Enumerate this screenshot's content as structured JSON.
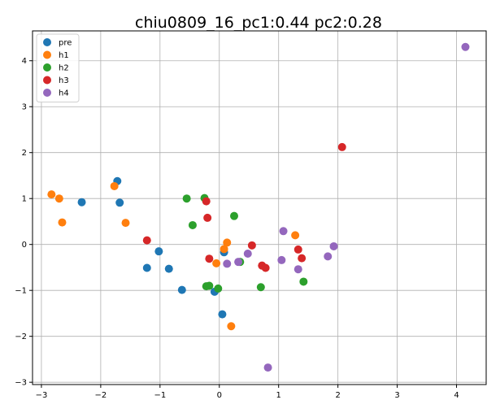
{
  "chart_data": {
    "type": "scatter",
    "title": "chiu0809_16_pc1:0.44 pc2:0.28",
    "xlabel": "",
    "ylabel": "",
    "xlim": [
      -3.15,
      4.5
    ],
    "ylim": [
      -3.05,
      4.65
    ],
    "xticks": [
      -3,
      -2,
      -1,
      0,
      1,
      2,
      3,
      4
    ],
    "yticks": [
      -3,
      -2,
      -1,
      0,
      1,
      2,
      3,
      4
    ],
    "xtick_labels": [
      "−3",
      "−2",
      "−1",
      "0",
      "1",
      "2",
      "3",
      "4"
    ],
    "ytick_labels": [
      "−3",
      "−2",
      "−1",
      "0",
      "1",
      "2",
      "3",
      "4"
    ],
    "grid": true,
    "legend_position": "top-left",
    "series": [
      {
        "name": "pre",
        "color": "#1f77b4",
        "points": [
          [
            -2.32,
            0.92
          ],
          [
            -1.72,
            1.38
          ],
          [
            -1.68,
            0.91
          ],
          [
            -1.22,
            -0.51
          ],
          [
            -1.02,
            -0.15
          ],
          [
            -0.85,
            -0.53
          ],
          [
            -0.63,
            -0.99
          ],
          [
            -0.08,
            -1.03
          ],
          [
            0.05,
            -1.52
          ],
          [
            0.08,
            -0.17
          ]
        ]
      },
      {
        "name": "h1",
        "color": "#ff7f0e",
        "points": [
          [
            -2.83,
            1.09
          ],
          [
            -2.7,
            1.0
          ],
          [
            -2.65,
            0.48
          ],
          [
            -1.77,
            1.27
          ],
          [
            -1.58,
            0.47
          ],
          [
            -0.05,
            -0.41
          ],
          [
            0.08,
            -0.1
          ],
          [
            0.13,
            0.04
          ],
          [
            0.2,
            -1.78
          ],
          [
            1.28,
            0.2
          ]
        ]
      },
      {
        "name": "h2",
        "color": "#2ca02c",
        "points": [
          [
            -0.55,
            1.0
          ],
          [
            -0.45,
            0.42
          ],
          [
            -0.25,
            1.01
          ],
          [
            -0.22,
            -0.91
          ],
          [
            -0.17,
            -0.9
          ],
          [
            -0.02,
            -0.96
          ],
          [
            0.25,
            0.62
          ],
          [
            0.35,
            -0.38
          ],
          [
            0.7,
            -0.93
          ],
          [
            1.42,
            -0.81
          ]
        ]
      },
      {
        "name": "h3",
        "color": "#d62728",
        "points": [
          [
            -1.22,
            0.09
          ],
          [
            -0.22,
            0.94
          ],
          [
            -0.2,
            0.58
          ],
          [
            -0.17,
            -0.31
          ],
          [
            0.55,
            -0.02
          ],
          [
            0.72,
            -0.46
          ],
          [
            0.78,
            -0.51
          ],
          [
            1.33,
            -0.11
          ],
          [
            1.39,
            -0.3
          ],
          [
            2.07,
            2.12
          ]
        ]
      },
      {
        "name": "h4",
        "color": "#9467bd",
        "points": [
          [
            0.13,
            -0.42
          ],
          [
            0.32,
            -0.38
          ],
          [
            0.48,
            -0.2
          ],
          [
            0.82,
            -2.68
          ],
          [
            1.05,
            -0.34
          ],
          [
            1.08,
            0.29
          ],
          [
            1.33,
            -0.54
          ],
          [
            1.83,
            -0.26
          ],
          [
            1.93,
            -0.04
          ],
          [
            4.15,
            4.3
          ]
        ]
      }
    ]
  }
}
